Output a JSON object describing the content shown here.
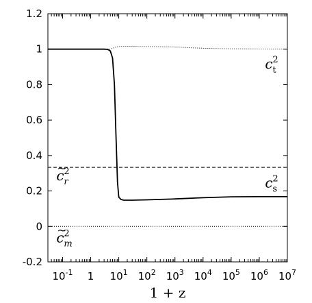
{
  "chart_data": {
    "type": "line",
    "xlabel": "1 + z",
    "xscale": "log",
    "xlim": [
      0.03,
      10000000
    ],
    "ylim": [
      -0.2,
      1.2
    ],
    "x_ticks": [
      {
        "value": 0.1,
        "base": "10",
        "exp": "-1"
      },
      {
        "value": 1,
        "base": "1",
        "exp": ""
      },
      {
        "value": 10,
        "base": "10",
        "exp": "1"
      },
      {
        "value": 100,
        "base": "10",
        "exp": "2"
      },
      {
        "value": 1000,
        "base": "10",
        "exp": "3"
      },
      {
        "value": 10000,
        "base": "10",
        "exp": "4"
      },
      {
        "value": 100000,
        "base": "10",
        "exp": "5"
      },
      {
        "value": 1000000,
        "base": "10",
        "exp": "6"
      },
      {
        "value": 10000000,
        "base": "10",
        "exp": "7"
      }
    ],
    "y_ticks": [
      {
        "value": 1.2,
        "label": "1.2"
      },
      {
        "value": 1.0,
        "label": "1"
      },
      {
        "value": 0.8,
        "label": "0.8"
      },
      {
        "value": 0.6,
        "label": "0.6"
      },
      {
        "value": 0.4,
        "label": "0.4"
      },
      {
        "value": 0.2,
        "label": "0.2"
      },
      {
        "value": 0.0,
        "label": "0"
      },
      {
        "value": -0.2,
        "label": "-0.2"
      }
    ],
    "grid": false,
    "series": [
      {
        "name": "c_t^2",
        "style": "dotted",
        "x": [
          0.03,
          1,
          3,
          5,
          6,
          8,
          10,
          15,
          30,
          100,
          1000,
          10000,
          100000,
          1000000,
          10000000
        ],
        "y": [
          1.0,
          1.0,
          1.0,
          1.0,
          1.005,
          1.012,
          1.015,
          1.016,
          1.016,
          1.015,
          1.012,
          1.005,
          1.002,
          1.001,
          1.0
        ]
      },
      {
        "name": "c_s^2",
        "style": "solid",
        "x": [
          0.03,
          1,
          3,
          4,
          5,
          6,
          7,
          8,
          9,
          10,
          12,
          15,
          30,
          100,
          1000,
          10000,
          100000,
          1000000,
          10000000
        ],
        "y": [
          1.0,
          1.0,
          1.0,
          0.999,
          0.99,
          0.95,
          0.8,
          0.5,
          0.25,
          0.165,
          0.152,
          0.148,
          0.148,
          0.15,
          0.155,
          0.162,
          0.167,
          0.168,
          0.168
        ]
      },
      {
        "name": "c_r^2",
        "style": "dashed",
        "x": [
          0.03,
          10000000
        ],
        "y": [
          0.3333,
          0.3333
        ]
      },
      {
        "name": "c_m^2",
        "style": "dotted",
        "x": [
          0.03,
          10000000
        ],
        "y": [
          0.0,
          0.0
        ]
      }
    ],
    "annotations": [
      {
        "id": "ct",
        "text": "c",
        "sup": "2",
        "sub": "t",
        "tilde": false,
        "x": 1600000,
        "y": 0.89
      },
      {
        "id": "cs",
        "text": "c",
        "sup": "2",
        "sub": "s",
        "tilde": false,
        "x": 1600000,
        "y": 0.22
      },
      {
        "id": "cr",
        "text": "c",
        "sup": "2",
        "sub": "r",
        "tilde": true,
        "x": 0.06,
        "y": 0.26
      },
      {
        "id": "cm",
        "text": "c",
        "sup": "2",
        "sub": "m",
        "tilde": true,
        "x": 0.06,
        "y": -0.09
      }
    ]
  }
}
